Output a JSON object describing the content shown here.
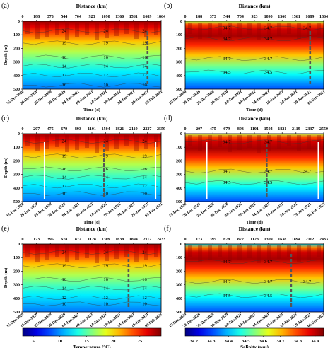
{
  "chart_data": [
    {
      "panel": "(a)",
      "type": "heatmap",
      "variable": "temperature",
      "xlabel": "Time (d)",
      "ylabel": "Depth (m)",
      "top_axis_label": "Distance (km)",
      "distance_ticks": [
        "0",
        "188",
        "373",
        "544",
        "704",
        "923",
        "1090",
        "1360",
        "1561",
        "1689",
        "1864"
      ],
      "date_ticks": [
        "15-Dec-2020",
        "20-Dec-2020",
        "25-Dec-2020",
        "30-Dec-2020",
        "04-Jan-2021",
        "09-Jan-2021",
        "14-Jan-2021",
        "19-Jan-2021",
        "24-Jan-2021",
        "29-Jan-2021",
        "03-Feb-2021"
      ],
      "depth_ticks": [
        "0",
        "100",
        "200",
        "300",
        "400",
        "500"
      ],
      "ylim": [
        500,
        0
      ],
      "contours": [
        {
          "value": "24",
          "depth_m": 70
        },
        {
          "value": "19",
          "depth_m": 160
        },
        {
          "value": "16",
          "depth_m": 265
        },
        {
          "value": "14",
          "depth_m": 330
        },
        {
          "value": "12",
          "depth_m": 395
        },
        {
          "value": "10",
          "depth_m": 470
        }
      ],
      "marker_lines_day": [
        46
      ]
    },
    {
      "panel": "(b)",
      "type": "heatmap",
      "variable": "salinity",
      "xlabel": "Time (d)",
      "ylabel": "",
      "top_axis_label": "Distance (km)",
      "distance_ticks": [
        "0",
        "188",
        "373",
        "544",
        "704",
        "923",
        "1090",
        "1360",
        "1561",
        "1689",
        "1864"
      ],
      "date_ticks": [
        "15-Dec-2020",
        "20-Dec-2020",
        "25-Dec-2020",
        "30-Dec-2020",
        "04-Jan-2021",
        "09-Jan-2021",
        "14-Jan-2021",
        "19-Jan-2021",
        "24-Jan-2021",
        "29-Jan-2021",
        "03-Feb-2021"
      ],
      "depth_ticks": [
        "0",
        "100",
        "200",
        "300",
        "400",
        "500"
      ],
      "ylim": [
        500,
        0
      ],
      "contours": [
        {
          "value": "34.7",
          "depth_m": 50
        },
        {
          "value": "34.7",
          "depth_m": 275
        },
        {
          "value": "34.5",
          "depth_m": 375
        },
        {
          "value": "34.7",
          "depth_m": 130
        }
      ],
      "marker_lines_day": [
        46
      ]
    },
    {
      "panel": "(c)",
      "type": "heatmap",
      "variable": "temperature",
      "xlabel": "Time (d)",
      "ylabel": "Depth (m)",
      "top_axis_label": "Distance (km)",
      "distance_ticks": [
        "0",
        "207",
        "475",
        "679",
        "893",
        "1101",
        "1504",
        "1821",
        "2119",
        "2337",
        "2559"
      ],
      "date_ticks": [
        "15-Dec-2020",
        "20-Dec-2020",
        "25-Dec-2020",
        "30-Dec-2020",
        "04-Jan-2021",
        "09-Jan-2021",
        "14-Jan-2021",
        "19-Jan-2021",
        "24-Jan-2021",
        "29-Jan-2021",
        "03-Feb-2021"
      ],
      "depth_ticks": [
        "0",
        "100",
        "200",
        "300",
        "400",
        "500"
      ],
      "ylim": [
        500,
        0
      ],
      "contours": [
        {
          "value": "24",
          "depth_m": 55
        },
        {
          "value": "19",
          "depth_m": 165
        },
        {
          "value": "16",
          "depth_m": 260
        },
        {
          "value": "14",
          "depth_m": 320
        },
        {
          "value": "12",
          "depth_m": 385
        },
        {
          "value": "10",
          "depth_m": 440
        }
      ],
      "marker_lines_day": [
        8,
        30,
        49
      ]
    },
    {
      "panel": "(d)",
      "type": "heatmap",
      "variable": "salinity",
      "xlabel": "Time (d)",
      "ylabel": "",
      "top_axis_label": "Distance (km)",
      "distance_ticks": [
        "0",
        "207",
        "475",
        "679",
        "893",
        "1101",
        "1504",
        "1821",
        "2119",
        "2337",
        "2559"
      ],
      "date_ticks": [
        "15-Dec-2020",
        "20-Dec-2020",
        "25-Dec-2020",
        "30-Dec-2020",
        "04-Jan-2021",
        "09-Jan-2021",
        "14-Jan-2021",
        "19-Jan-2021",
        "24-Jan-2021",
        "29-Jan-2021",
        "03-Feb-2021"
      ],
      "depth_ticks": [
        "0",
        "100",
        "200",
        "300",
        "400",
        "500"
      ],
      "ylim": [
        500,
        0
      ],
      "contours": [
        {
          "value": "34.7",
          "depth_m": 275
        },
        {
          "value": "34.5",
          "depth_m": 360
        },
        {
          "value": "34.7",
          "depth_m": 60
        }
      ],
      "marker_lines_day": [
        8,
        30,
        49
      ]
    },
    {
      "panel": "(e)",
      "type": "heatmap",
      "variable": "temperature",
      "xlabel": "Time (d)",
      "ylabel": "Depth (m)",
      "top_axis_label": "Distance (km)",
      "distance_ticks": [
        "0",
        "173",
        "395",
        "678",
        "872",
        "1128",
        "1309",
        "1638",
        "1894",
        "2112",
        "2433"
      ],
      "date_ticks": [
        "15-Dec-2020",
        "20-Dec-2020",
        "25-Dec-2020",
        "30-Dec-2020",
        "04-Jan-2021",
        "09-Jan-2021",
        "14-Jan-2021",
        "19-Jan-2021",
        "24-Jan-2021",
        "29-Jan-2021",
        "03-Feb-2021"
      ],
      "depth_ticks": [
        "0",
        "100",
        "200",
        "300",
        "400",
        "500"
      ],
      "ylim": [
        500,
        0
      ],
      "contours": [
        {
          "value": "24",
          "depth_m": 60
        },
        {
          "value": "19",
          "depth_m": 160
        },
        {
          "value": "16",
          "depth_m": 260
        },
        {
          "value": "14",
          "depth_m": 325
        },
        {
          "value": "12",
          "depth_m": 395
        },
        {
          "value": "10",
          "depth_m": 440
        }
      ],
      "marker_lines_day": [
        39
      ]
    },
    {
      "panel": "(f)",
      "type": "heatmap",
      "variable": "salinity",
      "xlabel": "Time (d)",
      "ylabel": "",
      "top_axis_label": "Distance (km)",
      "distance_ticks": [
        "0",
        "173",
        "395",
        "678",
        "872",
        "1128",
        "1309",
        "1638",
        "1894",
        "2112",
        "2433"
      ],
      "date_ticks": [
        "15-Dec-2020",
        "20-Dec-2020",
        "25-Dec-2020",
        "30-Dec-2020",
        "04-Jan-2021",
        "09-Jan-2021",
        "14-Jan-2021",
        "19-Jan-2021",
        "24-Jan-2021",
        "29-Jan-2021",
        "03-Feb-2021"
      ],
      "depth_ticks": [
        "0",
        "100",
        "200",
        "300",
        "400",
        "500"
      ],
      "ylim": [
        500,
        0
      ],
      "contours": [
        {
          "value": "34.7",
          "depth_m": 275
        },
        {
          "value": "34.5",
          "depth_m": 380
        },
        {
          "value": "34.7",
          "depth_m": 130
        }
      ],
      "marker_lines_day": [
        39
      ]
    }
  ],
  "colorbars": [
    {
      "label": "Temperature (°C)",
      "ticks": [
        "5",
        "10",
        "15",
        "20",
        "25"
      ],
      "range": [
        3,
        29
      ]
    },
    {
      "label": "Salinity (psu)",
      "ticks": [
        "34.2",
        "34.3",
        "34.4",
        "34.5",
        "34.6",
        "34.7",
        "34.8",
        "34.9"
      ],
      "range": [
        34.15,
        34.95
      ]
    }
  ],
  "colors": {
    "jet_low": "#00008f",
    "jet_mid": "#7fff7f",
    "jet_high": "#7f0000",
    "marker_line": "#555555",
    "white_line": "#ffffff"
  }
}
